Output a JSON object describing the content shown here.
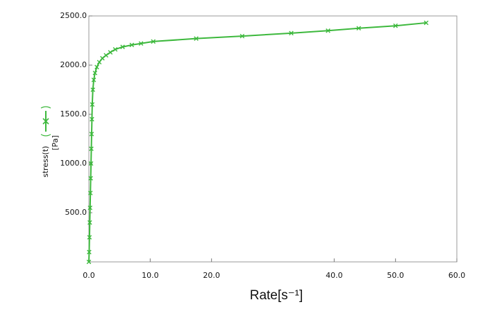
{
  "chart_data": {
    "type": "line",
    "x_label": "Rate[s⁻¹]",
    "y_label": "[Pa]",
    "x": [
      0,
      0.05,
      0.1,
      0.15,
      0.2,
      0.25,
      0.3,
      0.35,
      0.4,
      0.45,
      0.5,
      0.55,
      0.65,
      0.8,
      1.0,
      1.3,
      1.7,
      2.2,
      2.8,
      3.5,
      4.3,
      5.5,
      7.0,
      8.5,
      10.5,
      17.5,
      25,
      33,
      39,
      44,
      50,
      55
    ],
    "series": [
      {
        "name": "stress(t)",
        "color": "#3cb83c",
        "values": [
          0,
          100,
          250,
          400,
          550,
          700,
          850,
          1000,
          1150,
          1300,
          1450,
          1600,
          1750,
          1850,
          1920,
          1980,
          2030,
          2070,
          2100,
          2130,
          2160,
          2185,
          2205,
          2220,
          2240,
          2270,
          2295,
          2325,
          2350,
          2375,
          2400,
          2430
        ]
      }
    ],
    "xlim": [
      0,
      60
    ],
    "ylim": [
      0,
      2500
    ],
    "xticks": [
      {
        "value": 0,
        "label": "0.0"
      },
      {
        "value": 10,
        "label": "10.0"
      },
      {
        "value": 20,
        "label": "20.0"
      },
      {
        "value": 40,
        "label": "40.0"
      },
      {
        "value": 50,
        "label": "50.0"
      },
      {
        "value": 60,
        "label": "60.0"
      }
    ],
    "yticks": [
      {
        "value": 500,
        "label": "500.0"
      },
      {
        "value": 1000,
        "label": "1000.0"
      },
      {
        "value": 1500,
        "label": "1500.0"
      },
      {
        "value": 2000,
        "label": "2000.0"
      },
      {
        "value": 2500,
        "label": "2500.0"
      }
    ],
    "grid": false
  }
}
